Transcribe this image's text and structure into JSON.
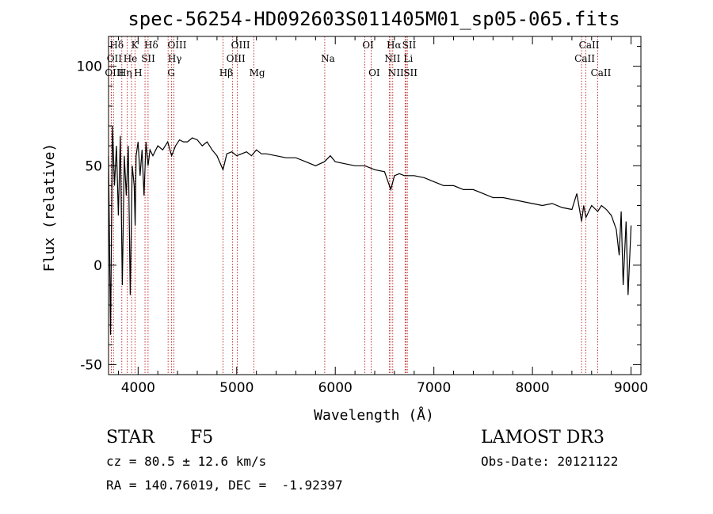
{
  "chart_data": {
    "type": "line",
    "title": "spec-56254-HD092603S011405M01_sp05-065.fits",
    "xlabel": "Wavelength (Å)",
    "ylabel": "Flux (relative)",
    "xlim": [
      3700,
      9100
    ],
    "ylim": [
      -55,
      115
    ],
    "xticks": [
      4000,
      5000,
      6000,
      7000,
      8000,
      9000
    ],
    "yticks": [
      -50,
      0,
      50,
      100
    ],
    "series": [
      {
        "name": "spectrum",
        "x": [
          3700,
          3720,
          3740,
          3760,
          3780,
          3800,
          3820,
          3840,
          3860,
          3880,
          3900,
          3920,
          3940,
          3960,
          3970,
          3980,
          4000,
          4020,
          4040,
          4060,
          4080,
          4101,
          4120,
          4150,
          4200,
          4250,
          4300,
          4340,
          4380,
          4420,
          4460,
          4500,
          4550,
          4600,
          4650,
          4700,
          4750,
          4800,
          4861,
          4900,
          4950,
          5000,
          5050,
          5100,
          5150,
          5200,
          5250,
          5300,
          5400,
          5500,
          5600,
          5700,
          5800,
          5890,
          5950,
          6000,
          6100,
          6200,
          6300,
          6400,
          6500,
          6563,
          6600,
          6650,
          6700,
          6800,
          6900,
          7000,
          7100,
          7200,
          7300,
          7400,
          7500,
          7600,
          7700,
          7800,
          7900,
          8000,
          8100,
          8200,
          8300,
          8400,
          8450,
          8498,
          8520,
          8542,
          8600,
          8662,
          8700,
          8750,
          8800,
          8850,
          8880,
          8900,
          8920,
          8950,
          8970,
          9000
        ],
        "y": [
          55,
          -35,
          70,
          40,
          60,
          25,
          65,
          -10,
          55,
          35,
          60,
          -15,
          50,
          40,
          20,
          55,
          62,
          45,
          58,
          35,
          62,
          50,
          58,
          55,
          60,
          58,
          62,
          55,
          60,
          63,
          62,
          62,
          64,
          63,
          60,
          62,
          58,
          55,
          48,
          56,
          57,
          55,
          56,
          57,
          55,
          58,
          56,
          56,
          55,
          54,
          54,
          52,
          50,
          52,
          55,
          52,
          51,
          50,
          50,
          48,
          47,
          38,
          45,
          46,
          45,
          45,
          44,
          42,
          40,
          40,
          38,
          38,
          36,
          34,
          34,
          33,
          32,
          31,
          30,
          31,
          29,
          28,
          36,
          22,
          30,
          24,
          30,
          27,
          30,
          28,
          25,
          18,
          5,
          27,
          -10,
          22,
          -15,
          20
        ]
      }
    ],
    "line_markers": [
      {
        "label": "Hδ",
        "x": 3750,
        "row": 0
      },
      {
        "label": "K",
        "x": 3934,
        "row": 0
      },
      {
        "label": "Hδ",
        "x": 4101,
        "row": 0
      },
      {
        "label": "OIII",
        "x": 4363,
        "row": 0
      },
      {
        "label": "OIII",
        "x": 5007,
        "row": 0
      },
      {
        "label": "OI",
        "x": 6300,
        "row": 0
      },
      {
        "label": "Hα",
        "x": 6563,
        "row": 0
      },
      {
        "label": "SII",
        "x": 6717,
        "row": 0
      },
      {
        "label": "CaII",
        "x": 8542,
        "row": 0
      },
      {
        "label": "OII",
        "x": 3727,
        "row": 1
      },
      {
        "label": "He",
        "x": 3889,
        "row": 1
      },
      {
        "label": "SII",
        "x": 4070,
        "row": 1
      },
      {
        "label": "Hγ",
        "x": 4340,
        "row": 1
      },
      {
        "label": "OIII",
        "x": 4959,
        "row": 1
      },
      {
        "label": "Na",
        "x": 5893,
        "row": 1
      },
      {
        "label": "NII",
        "x": 6548,
        "row": 1
      },
      {
        "label": "Li",
        "x": 6708,
        "row": 1
      },
      {
        "label": "CaII",
        "x": 8498,
        "row": 1
      },
      {
        "label": "OIII",
        "x": 3727,
        "row": 2
      },
      {
        "label": "Hη",
        "x": 3835,
        "row": 2
      },
      {
        "label": "H",
        "x": 3968,
        "row": 2
      },
      {
        "label": "G",
        "x": 4304,
        "row": 2
      },
      {
        "label": "Hβ",
        "x": 4861,
        "row": 2
      },
      {
        "label": "Mg",
        "x": 5175,
        "row": 2
      },
      {
        "label": "OI",
        "x": 6363,
        "row": 2
      },
      {
        "label": "NII",
        "x": 6583,
        "row": 2
      },
      {
        "label": "SII",
        "x": 6731,
        "row": 2
      },
      {
        "label": "CaII",
        "x": 8662,
        "row": 2
      }
    ],
    "marker_color": "#b30000"
  },
  "info": {
    "object_class": "STAR",
    "subclass": "F5",
    "survey": "LAMOST DR3",
    "cz": "cz = 80.5 ± 12.6 km/s",
    "obs_date": "Obs-Date: 20121122",
    "coords": "RA = 140.76019, DEC =  -1.92397"
  }
}
